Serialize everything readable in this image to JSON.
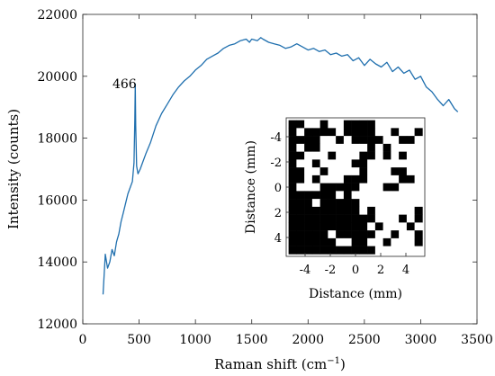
{
  "chart_data": [
    {
      "type": "line",
      "xlabel": "Raman shift (cm",
      "xlabel_sup": "−1",
      "xlabel_suffix": ")",
      "ylabel": "Intensity (counts)",
      "xlim": [
        0,
        3500
      ],
      "ylim": [
        12000,
        22000
      ],
      "xticks": [
        0,
        500,
        1000,
        1500,
        2000,
        2500,
        3000,
        3500
      ],
      "yticks": [
        12000,
        14000,
        16000,
        18000,
        20000,
        22000
      ],
      "grid": false,
      "line_color": "#1f6fae",
      "annotations": [
        {
          "text": "466",
          "x": 466,
          "y": 19700
        }
      ],
      "series": [
        {
          "x": [
            180,
            200,
            220,
            240,
            260,
            280,
            300,
            320,
            340,
            360,
            380,
            400,
            420,
            440,
            455,
            462,
            466,
            470,
            478,
            490,
            510,
            530,
            560,
            600,
            650,
            700,
            750,
            800,
            850,
            900,
            950,
            1000,
            1050,
            1100,
            1150,
            1200,
            1250,
            1300,
            1350,
            1400,
            1450,
            1480,
            1500,
            1550,
            1580,
            1600,
            1650,
            1700,
            1750,
            1800,
            1850,
            1900,
            1950,
            2000,
            2050,
            2100,
            2150,
            2200,
            2250,
            2300,
            2350,
            2400,
            2450,
            2500,
            2550,
            2600,
            2650,
            2700,
            2750,
            2800,
            2850,
            2900,
            2950,
            3000,
            3050,
            3100,
            3150,
            3200,
            3250,
            3300,
            3330
          ],
          "y": [
            12950,
            14250,
            13800,
            14000,
            14400,
            14200,
            14650,
            14900,
            15300,
            15600,
            15900,
            16200,
            16400,
            16600,
            17200,
            18600,
            19750,
            18400,
            17100,
            16850,
            17000,
            17200,
            17500,
            17850,
            18400,
            18800,
            19100,
            19400,
            19650,
            19850,
            20000,
            20200,
            20350,
            20550,
            20650,
            20750,
            20900,
            21000,
            21050,
            21150,
            21200,
            21100,
            21200,
            21150,
            21250,
            21200,
            21100,
            21050,
            21000,
            20900,
            20950,
            21050,
            20950,
            20850,
            20900,
            20800,
            20850,
            20700,
            20750,
            20650,
            20700,
            20500,
            20600,
            20350,
            20550,
            20400,
            20300,
            20450,
            20150,
            20300,
            20100,
            20200,
            19900,
            20000,
            19650,
            19500,
            19250,
            19050,
            19250,
            18950,
            18850
          ]
        }
      ]
    },
    {
      "type": "heatmap",
      "xlabel": "Distance (mm)",
      "ylabel": "Distance (mm)",
      "xlim": [
        -5.5,
        5.5
      ],
      "ylim": [
        -5.5,
        5.5
      ],
      "xticks": [
        -4,
        -2,
        0,
        2,
        4
      ],
      "yticks": [
        -4,
        -2,
        0,
        2,
        4
      ],
      "y_reversed": true,
      "grid_start": -5,
      "cell_colors": {
        "0": "#ffffff",
        "1": "#000000"
      },
      "rows": [
        "11001001111000000",
        "10111101111001001",
        "11110010111100110",
        "10110000001010000",
        "11000100011010100",
        "10010000110000000",
        "11001000010001100",
        "11010001110000110",
        "10001111100011000",
        "11111101000000000",
        "11101111100000000",
        "11111111101000001",
        "11111111111000101",
        "11111111110100010",
        "11111011111001001",
        "11111100110010001",
        "11111111111000000"
      ]
    }
  ]
}
